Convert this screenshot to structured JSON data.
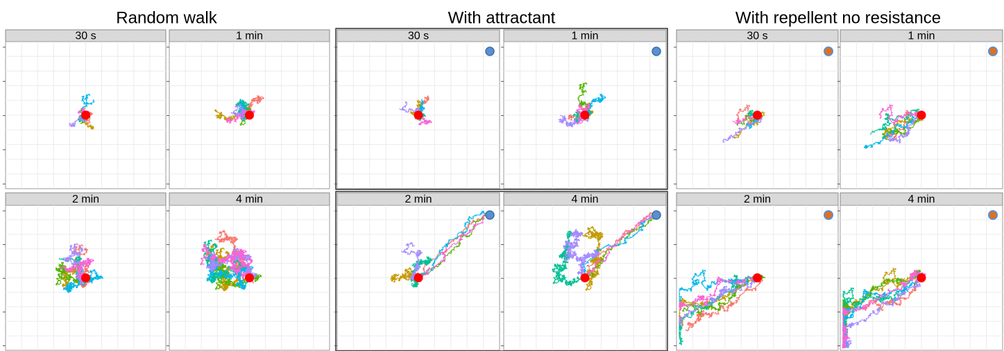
{
  "groups": [
    {
      "title": "Random walk",
      "panels": [
        "30 s",
        "1 min",
        "2 min",
        "4 min"
      ]
    },
    {
      "title": "With attractant",
      "panels": [
        "30 s",
        "1 min",
        "2 min",
        "4 min"
      ]
    },
    {
      "title": "With repellent no resistance",
      "panels": [
        "30 s",
        "1 min",
        "2 min",
        "4 min"
      ]
    }
  ]
}
